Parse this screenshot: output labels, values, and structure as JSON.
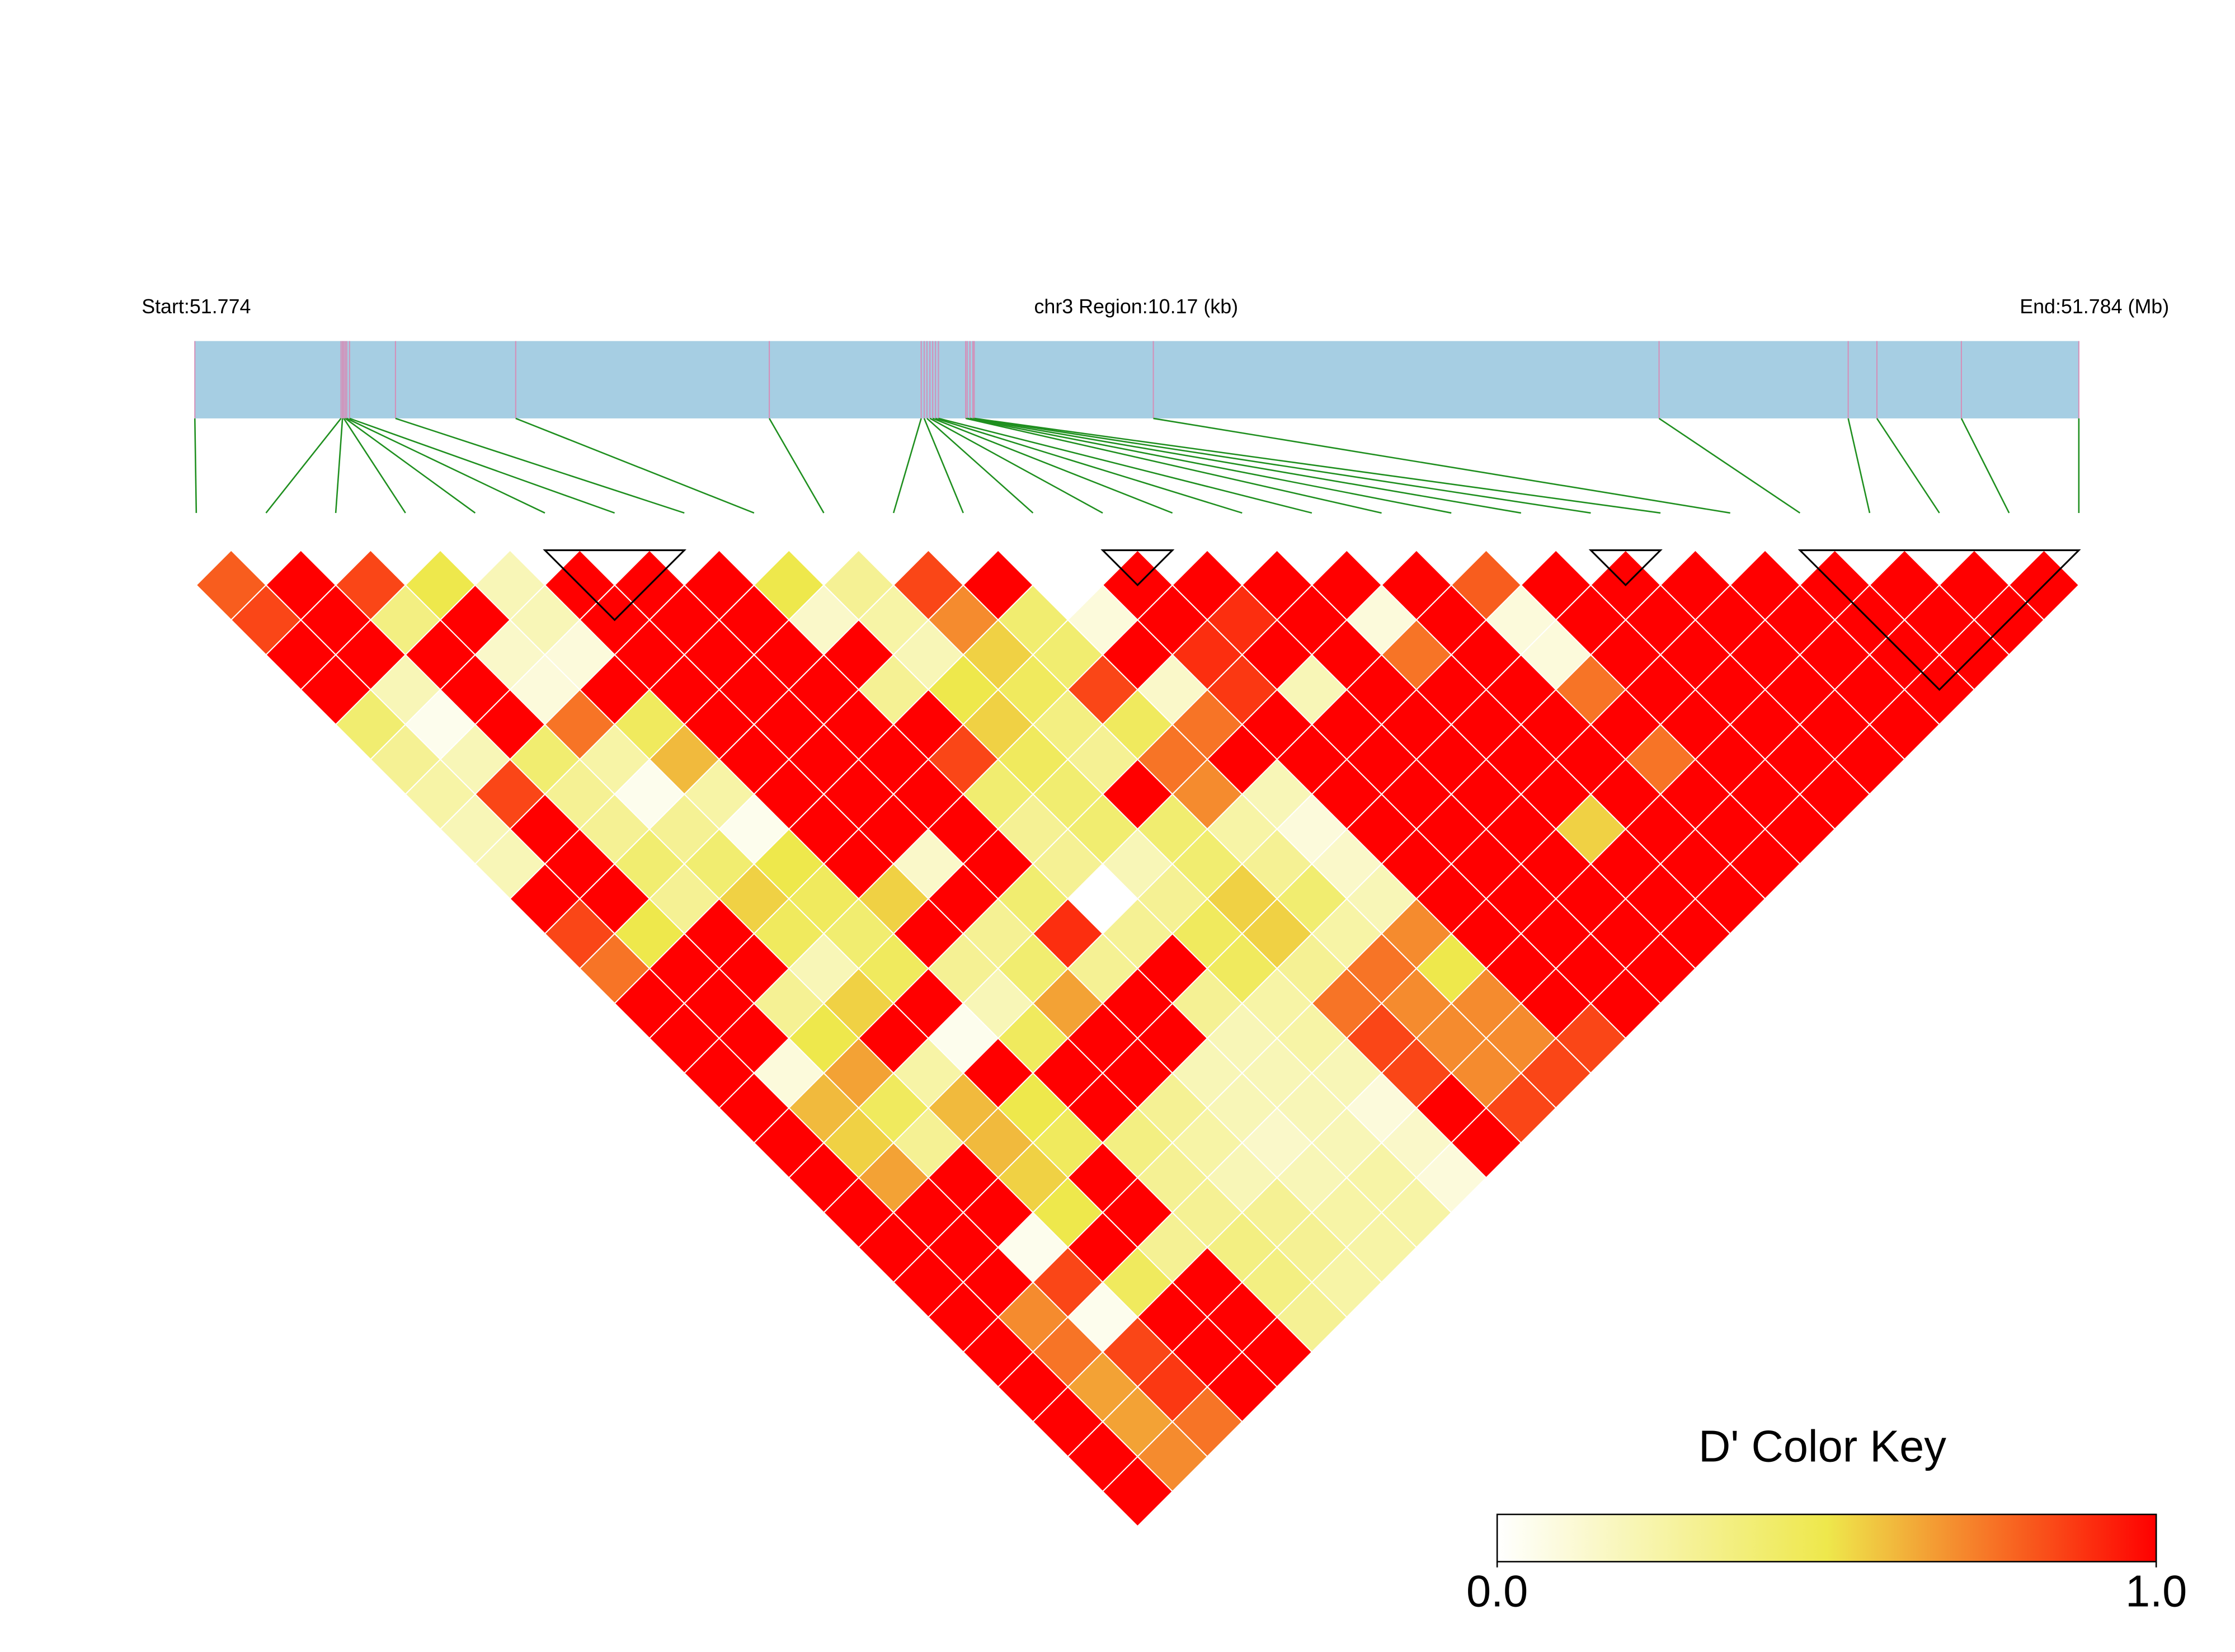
{
  "chart_data": {
    "type": "ld-heatmap",
    "start_label": "Start:51.774",
    "region_label": "chr3 Region:10.17 (kb)",
    "end_label": "End:51.784 (Mb)",
    "xlim": [
      0,
      10.17
    ],
    "snp_positions": [
      0,
      0.789,
      0.797,
      0.804,
      0.812,
      0.82,
      0.835,
      1.083,
      1.732,
      3.101,
      3.921,
      3.937,
      3.952,
      3.968,
      3.983,
      3.998,
      4.014,
      4.161,
      4.169,
      4.184,
      4.2,
      4.207,
      5.174,
      7.904,
      8.925,
      9.08,
      9.536,
      10.17
    ],
    "dprime_by_distance": [
      [
        0.8,
        1,
        0.85,
        0.5,
        0.2,
        1,
        1,
        1,
        0.5,
        0.3,
        0.85,
        1,
        0,
        1,
        1,
        1,
        1,
        1,
        0.8,
        1,
        1,
        1,
        1,
        1,
        1,
        1,
        1
      ],
      [
        0.85,
        1,
        0.35,
        1,
        0.2,
        1,
        1,
        1,
        0.15,
        0.25,
        0.7,
        0.4,
        0.1,
        1,
        0.9,
        1,
        0.1,
        1,
        0.1,
        1,
        1,
        1,
        1,
        1,
        1,
        1
      ],
      [
        1,
        1,
        1,
        0.15,
        0.1,
        1,
        1,
        1,
        1,
        0.2,
        0.55,
        0.4,
        1,
        0.9,
        1,
        1,
        0.75,
        1,
        0.1,
        1,
        1,
        1,
        1,
        1,
        1
      ],
      [
        1,
        0.2,
        1,
        0.1,
        1,
        1,
        1,
        1,
        0.3,
        0.5,
        0.45,
        0.85,
        0.15,
        0.88,
        0.2,
        1,
        1,
        1,
        0.75,
        1,
        1,
        1,
        1,
        1
      ],
      [
        0.4,
        0.05,
        1,
        0.75,
        0.45,
        1,
        1,
        1,
        1,
        0.55,
        0.35,
        0.45,
        0.75,
        1,
        1,
        1,
        1,
        1,
        1,
        1,
        1,
        1,
        1
      ],
      [
        0.3,
        0.2,
        0.4,
        0.25,
        0.6,
        1,
        1,
        1,
        0.85,
        0.45,
        0.3,
        0.75,
        1,
        1,
        1,
        1,
        1,
        1,
        0.75,
        1,
        1,
        1
      ],
      [
        0.25,
        0.85,
        0.3,
        0.05,
        0.25,
        1,
        1,
        1,
        0.4,
        0.4,
        1,
        0.7,
        0.2,
        1,
        1,
        1,
        1,
        1,
        1,
        1,
        1
      ],
      [
        0.2,
        1,
        0.3,
        0.3,
        0.05,
        1,
        1,
        1,
        0.3,
        0.4,
        0.4,
        0.25,
        0.1,
        1,
        1,
        1,
        0.55,
        1,
        1,
        1
      ],
      [
        0.2,
        1,
        0.4,
        0.4,
        0.5,
        1,
        0.15,
        1,
        0.3,
        0.2,
        0.4,
        0.3,
        0.15,
        1,
        1,
        1,
        1,
        1,
        1
      ],
      [
        1,
        1,
        0.3,
        0.55,
        0.45,
        0.55,
        1,
        0.4,
        0,
        0.3,
        0.55,
        0.4,
        0.2,
        1,
        1,
        1,
        1,
        1
      ],
      [
        0.85,
        0.5,
        1,
        0.45,
        0.4,
        1,
        0.3,
        0.9,
        0.3,
        0.45,
        0.55,
        0.25,
        0.7,
        1,
        1,
        1,
        1
      ],
      [
        0.75,
        1,
        1,
        0.2,
        0.45,
        0.3,
        0.4,
        0.3,
        1,
        0.45,
        0.3,
        0.75,
        0.5,
        1,
        1,
        1
      ],
      [
        1,
        1,
        0.3,
        0.55,
        1,
        0.2,
        0.65,
        1,
        0.3,
        0.25,
        0.75,
        0.7,
        0.7,
        1,
        1
      ],
      [
        1,
        1,
        0.5,
        1,
        0.05,
        0.45,
        1,
        1,
        0.2,
        0.25,
        0.85,
        0.7,
        0.7,
        0.85
      ],
      [
        1,
        0.1,
        0.65,
        0.25,
        1,
        1,
        1,
        0.2,
        0.2,
        0.2,
        0.85,
        0.7,
        0.85
      ],
      [
        1,
        0.6,
        0.45,
        0.6,
        0.5,
        1,
        0.3,
        0.2,
        0.2,
        0.1,
        1,
        0.85
      ],
      [
        1,
        0.55,
        0.3,
        0.6,
        0.45,
        0.35,
        0.25,
        0.15,
        0.2,
        0.15,
        1
      ],
      [
        1,
        0.65,
        1,
        0.55,
        1,
        0.3,
        0.2,
        0.2,
        0.25,
        0.1
      ],
      [
        1,
        1,
        1,
        0.5,
        1,
        0.3,
        0.3,
        0.25,
        0.25
      ],
      [
        1,
        1,
        0.05,
        1,
        0.3,
        0.35,
        0.3,
        0.25
      ],
      [
        1,
        1,
        0.85,
        0.45,
        1,
        0.35,
        0.25
      ],
      [
        1,
        0.7,
        0.05,
        1,
        1,
        0.3
      ],
      [
        1,
        0.75,
        0.85,
        1,
        1
      ],
      [
        1,
        0.65,
        0.88,
        1
      ],
      [
        1,
        0.65,
        0.75
      ],
      [
        1,
        0.7
      ],
      [
        1
      ]
    ],
    "blocks": [
      [
        5,
        7
      ],
      [
        13,
        14
      ],
      [
        20,
        21
      ],
      [
        23,
        27
      ]
    ],
    "colors": [
      "#ffffff",
      "#eee84c",
      "#ff0000"
    ],
    "bar_color": "#a6cee3",
    "snp_line_color": "#d48fb8",
    "connector_color": "#1f8f1f",
    "legend_title": "D' Color Key",
    "legend_ticks": [
      {
        "value": 0,
        "label": "0.0"
      },
      {
        "value": 1,
        "label": "1.0"
      }
    ]
  }
}
